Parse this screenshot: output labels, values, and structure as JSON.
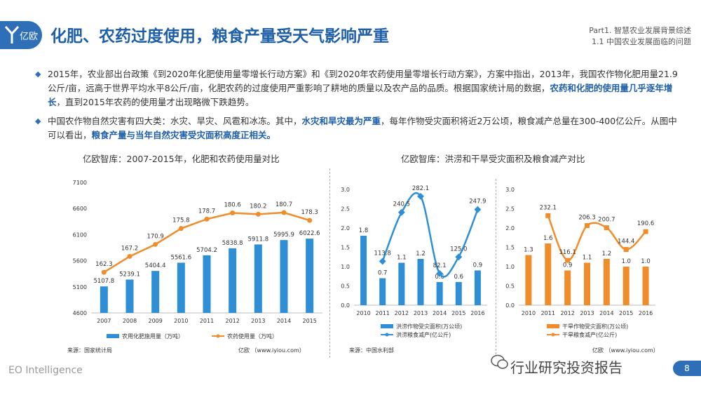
{
  "header": {
    "logo_text": "亿欧",
    "title": "化肥、农药过度使用，粮食产量受天气影响严重",
    "part": "Part1. 智慧农业发展背景综述",
    "section": "1.1 中国农业发展面临的问题"
  },
  "paragraphs": [
    {
      "bullet": "◆",
      "text1": "2015年，农业部出台政策《到2020年化肥使用量零增长行动方案》和《到2020年农药使用量零增长行动方案》，方案中指出，2013年，我国农作物化肥用量21.9公斤/亩，远高于世界平均水平8公斤/亩，化肥农药的过度使用严重影响了耕地的质量以及农产品的品质。根据国家统计局的数据，",
      "hl1": "农药和化肥的使用量几乎逐年增长",
      "text2": "，直到2015年农药的使用量才出现略微下跌趋势。"
    },
    {
      "bullet": "◆",
      "text1": "中国农作物自然灾害有四大类：水灾、旱灾、风雹和冰冻。其中，",
      "hl1": "水灾和旱灾最为严重",
      "text2": "，每年作物受灾面积将近2万公顷，粮食减产总量在300-400亿公斤。从图中可以看出，",
      "hl2": "粮食产量与当年自然灾害受灾面积高度正相关。"
    }
  ],
  "chart_data": [
    {
      "type": "bar",
      "title": "亿欧智库：2007-2015年，化肥和农药使用量对比",
      "categories": [
        "2007",
        "2008",
        "2009",
        "2010",
        "2011",
        "2012",
        "2013",
        "2014",
        "2015"
      ],
      "series": [
        {
          "name": "农用化肥施用量（万吨）",
          "type": "bar",
          "color": "#2e8fd6",
          "values": [
            5107.8,
            5239.1,
            5404.4,
            5561.6,
            5704.2,
            5838.8,
            5911.8,
            5995.9,
            6022.6
          ]
        },
        {
          "name": "农药使用量（万吨）",
          "type": "line",
          "color": "#f08c2a",
          "values": [
            162.3,
            167.2,
            170.9,
            175.8,
            178.7,
            180.6,
            180.2,
            180.7,
            178.3
          ]
        }
      ],
      "yticks": [
        "4600",
        "5100",
        "5600",
        "6100",
        "6600",
        "7100"
      ],
      "ylim": [
        4600,
        7100
      ],
      "source": "来源：国家统计局",
      "credit": "亿欧 （www.iyiou.com）"
    },
    {
      "type": "bar",
      "title": "亿欧智库：洪涝和干旱受灾面积及粮食减产对比",
      "categories": [
        "2010",
        "2011",
        "2012",
        "2013",
        "2014",
        "2015",
        "2016"
      ],
      "series": [
        {
          "name": "洪涝作物受灾面积(万公顷)",
          "type": "bar",
          "color": "#2e8fd6",
          "values": [
            1.8,
            0.7,
            1.1,
            1.2,
            0.6,
            0.6,
            0.9
          ]
        },
        {
          "name": "洪涝粮食减产(亿公斤)",
          "type": "line",
          "color": "#2e8fd6",
          "values": [
            null,
            113.8,
            240.5,
            282.1,
            82.1,
            125.0,
            247.9
          ]
        }
      ],
      "yticks": [
        "0.0",
        "0.5",
        "1.0",
        "1.5",
        "2.0",
        "2.5",
        "3.0"
      ],
      "ylim": [
        0,
        3.0
      ],
      "source": "来源：中国水利部"
    },
    {
      "type": "bar",
      "categories": [
        "2010",
        "2011",
        "2012",
        "2013",
        "2014",
        "2015",
        "2016"
      ],
      "series": [
        {
          "name": "干旱作物受灾面积(万公顷)",
          "type": "bar",
          "color": "#f08c2a",
          "values": [
            1.3,
            1.6,
            0.9,
            1.1,
            1.2,
            1.0,
            1.0
          ]
        },
        {
          "name": "干旱粮食减产(亿公斤)",
          "type": "line",
          "color": "#f08c2a",
          "values": [
            null,
            232.1,
            116.1,
            206.3,
            200.7,
            144.4,
            190.6
          ]
        }
      ],
      "yticks": [
        "0.0",
        "0.5",
        "1.0",
        "1.5",
        "2.0",
        "2.5",
        "3.0"
      ],
      "ylim": [
        0,
        3.0
      ],
      "credit": "亿欧 （www.iyiou.com）"
    }
  ],
  "footer": {
    "brand": "EO Intelligence",
    "wechat": "行业研究投资报告",
    "page": "8"
  }
}
